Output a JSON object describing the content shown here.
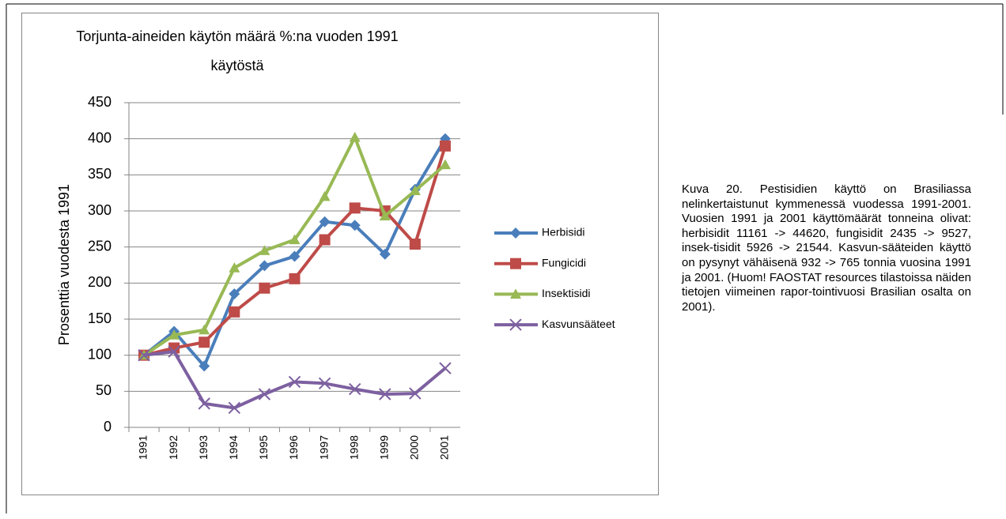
{
  "chart_data": {
    "type": "line",
    "title": "Torjunta-aineiden käytön määrä %:na vuoden 1991 käytöstä",
    "y_label": "Prosenttia vuodesta 1991",
    "categories": [
      "1991",
      "1992",
      "1993",
      "1994",
      "1995",
      "1996",
      "1997",
      "1998",
      "1999",
      "2000",
      "2001"
    ],
    "series": [
      {
        "name": "Herbisidi",
        "color": "#4a7ebb",
        "marker": "diamond",
        "values": [
          100,
          133,
          85,
          185,
          224,
          237,
          285,
          280,
          240,
          330,
          400
        ]
      },
      {
        "name": "Fungicidi",
        "color": "#be4b48",
        "marker": "square",
        "values": [
          100,
          110,
          118,
          160,
          193,
          206,
          260,
          304,
          300,
          254,
          390
        ]
      },
      {
        "name": "Insektisidi",
        "color": "#98b954",
        "marker": "triangle",
        "values": [
          100,
          128,
          135,
          221,
          245,
          260,
          320,
          402,
          293,
          328,
          364
        ]
      },
      {
        "name": "Kasvunsääteet",
        "color": "#7d60a0",
        "marker": "x",
        "values": [
          100,
          105,
          33,
          27,
          46,
          63,
          61,
          53,
          46,
          47,
          82
        ]
      }
    ],
    "ylim": [
      0,
      450
    ],
    "yticks": [
      0,
      50,
      100,
      150,
      200,
      250,
      300,
      350,
      400,
      450
    ],
    "grid": true,
    "legend": "right"
  },
  "caption": "Kuva 20. Pestisidien käyttö on Brasiliassa nelinkertaistunut kymmenessä vuodessa 1991-2001. Vuosien 1991 ja 2001 käyttömäärät tonneina olivat: herbisidit 11161 -> 44620, fungisidit 2435 -> 9527, insek-tisidit 5926 -> 21544. Kasvun-säätei­den käyttö on pysynyt vähäisenä 932 -> 765 tonnia vuosina 1991 ja 2001. (Huom! FAOSTAT resources tilastoissa näiden tietojen viimeinen rapor-tointivuosi Brasilian osalta on 2001)."
}
